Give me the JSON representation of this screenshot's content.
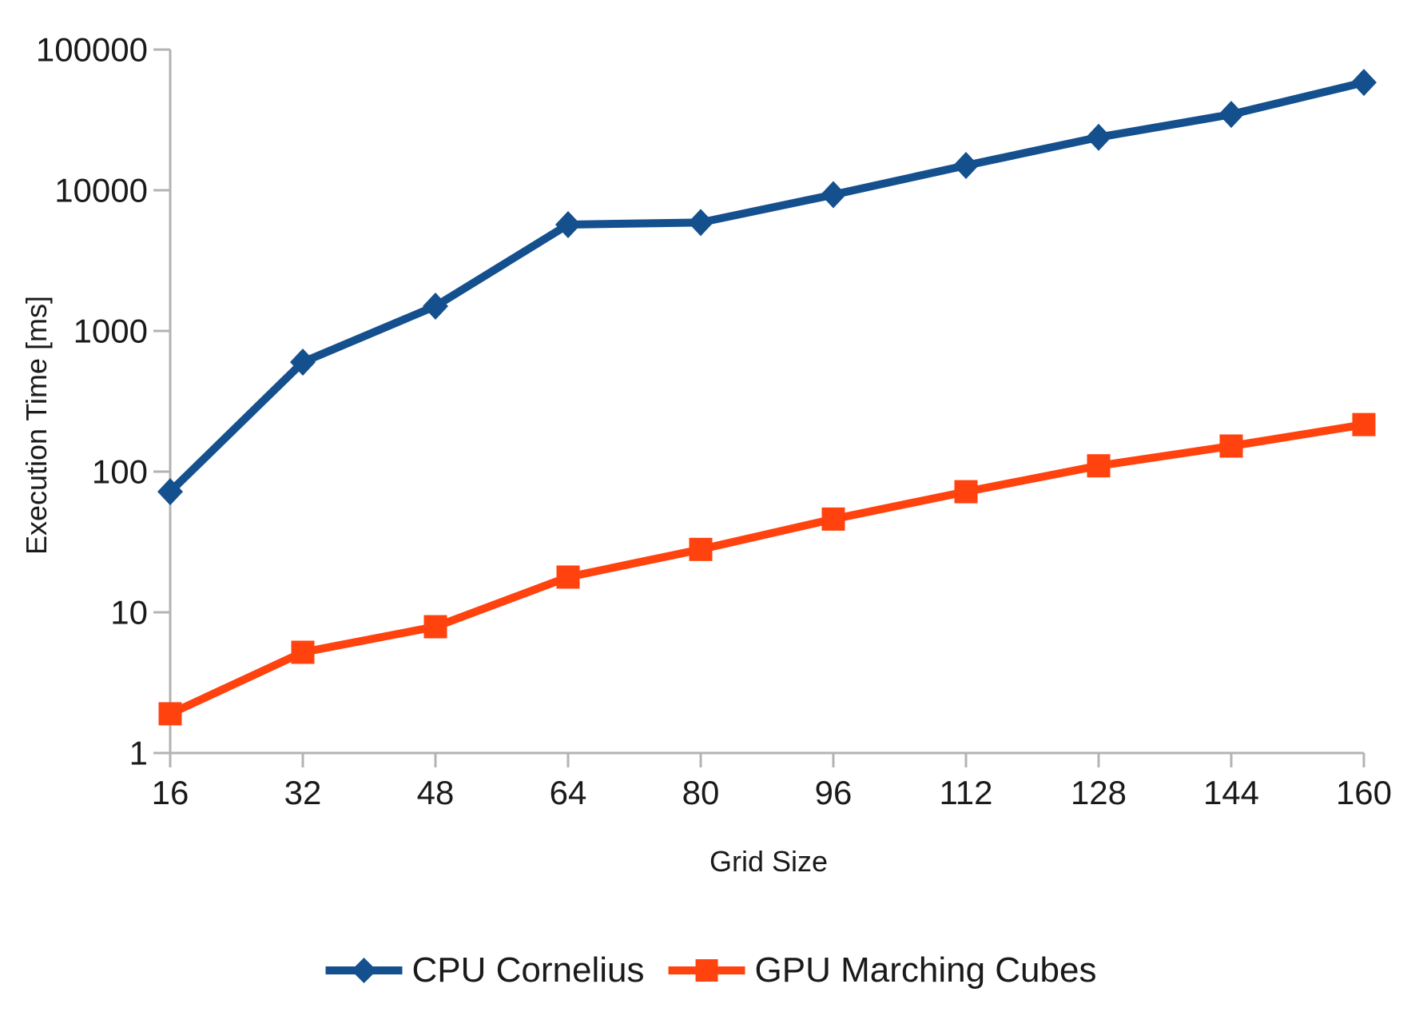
{
  "chart_data": {
    "type": "line",
    "title": "",
    "xlabel": "Grid Size",
    "ylabel": "Execution Time [ms]",
    "x": [
      16,
      32,
      48,
      64,
      80,
      96,
      112,
      128,
      144,
      160
    ],
    "x_tick_labels": [
      "16",
      "32",
      "48",
      "64",
      "80",
      "96",
      "112",
      "128",
      "144",
      "160"
    ],
    "y_scale": "log",
    "ylim": [
      1,
      100000
    ],
    "y_ticks": [
      1,
      10,
      100,
      1000,
      10000,
      100000
    ],
    "y_tick_labels": [
      "1",
      "10",
      "100",
      "1000",
      "10000",
      "100000"
    ],
    "grid": "off",
    "legend_position": "bottom-center",
    "series": [
      {
        "name": "CPU Cornelius",
        "marker": "diamond",
        "color": "#15508e",
        "values": [
          72,
          600,
          1500,
          5700,
          5900,
          9300,
          15000,
          23800,
          34600,
          58400
        ]
      },
      {
        "name": "GPU Marching Cubes",
        "marker": "square",
        "color": "#ff420e",
        "values": [
          1.9,
          5.2,
          7.9,
          17.8,
          28,
          46,
          72,
          110,
          152,
          216
        ]
      }
    ]
  },
  "colors": {
    "axis": "#b3b3b3",
    "text": "#1a1a1a",
    "background": "#ffffff"
  }
}
